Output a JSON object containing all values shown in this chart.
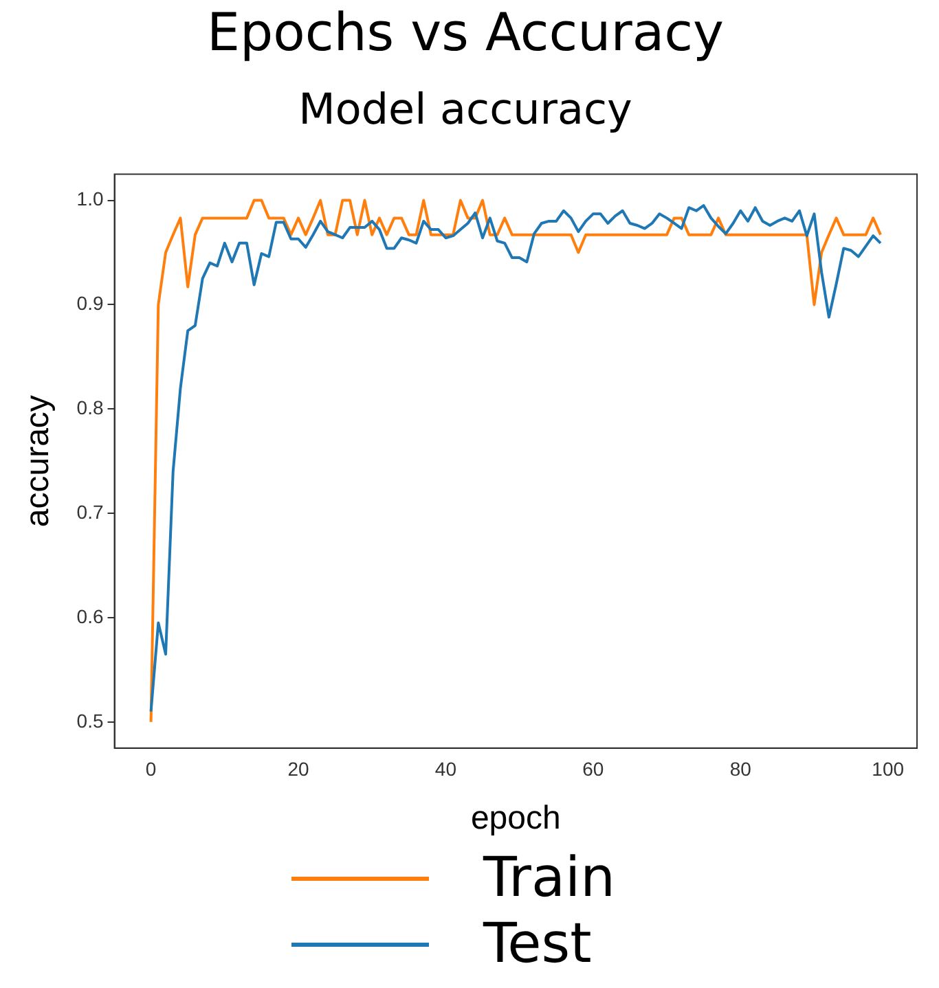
{
  "chart_data": {
    "type": "line",
    "title": "Epochs vs Accuracy",
    "subtitle": "Model accuracy",
    "xlabel": "epoch",
    "ylabel": "accuracy",
    "x": [
      0,
      1,
      2,
      3,
      4,
      5,
      6,
      7,
      8,
      9,
      10,
      11,
      12,
      13,
      14,
      15,
      16,
      17,
      18,
      19,
      20,
      21,
      22,
      23,
      24,
      25,
      26,
      27,
      28,
      29,
      30,
      31,
      32,
      33,
      34,
      35,
      36,
      37,
      38,
      39,
      40,
      41,
      42,
      43,
      44,
      45,
      46,
      47,
      48,
      49,
      50,
      51,
      52,
      53,
      54,
      55,
      56,
      57,
      58,
      59,
      60,
      61,
      62,
      63,
      64,
      65,
      66,
      67,
      68,
      69,
      70,
      71,
      72,
      73,
      74,
      75,
      76,
      77,
      78,
      79,
      80,
      81,
      82,
      83,
      84,
      85,
      86,
      87,
      88,
      89,
      90,
      91,
      92,
      93,
      94,
      95,
      96,
      97,
      98,
      99
    ],
    "series": [
      {
        "name": "Train",
        "color": "#ff7f0e",
        "values": [
          0.5,
          0.9,
          0.95,
          0.967,
          0.983,
          0.917,
          0.967,
          0.983,
          0.983,
          0.983,
          0.983,
          0.983,
          0.983,
          0.983,
          1.0,
          1.0,
          0.983,
          0.983,
          0.983,
          0.967,
          0.983,
          0.967,
          0.983,
          1.0,
          0.967,
          0.967,
          1.0,
          1.0,
          0.967,
          1.0,
          0.967,
          0.983,
          0.967,
          0.983,
          0.983,
          0.967,
          0.967,
          1.0,
          0.967,
          0.967,
          0.967,
          0.967,
          1.0,
          0.983,
          0.983,
          1.0,
          0.967,
          0.967,
          0.983,
          0.967,
          0.967,
          0.967,
          0.967,
          0.967,
          0.967,
          0.967,
          0.967,
          0.967,
          0.95,
          0.967,
          0.967,
          0.967,
          0.967,
          0.967,
          0.967,
          0.967,
          0.967,
          0.967,
          0.967,
          0.967,
          0.967,
          0.983,
          0.983,
          0.967,
          0.967,
          0.967,
          0.967,
          0.983,
          0.967,
          0.967,
          0.967,
          0.967,
          0.967,
          0.967,
          0.967,
          0.967,
          0.967,
          0.967,
          0.967,
          0.967,
          0.9,
          0.95,
          0.967,
          0.983,
          0.967,
          0.967,
          0.967,
          0.967,
          0.983,
          0.967
        ]
      },
      {
        "name": "Test",
        "color": "#1f77b4",
        "values": [
          0.51,
          0.595,
          0.565,
          0.74,
          0.82,
          0.875,
          0.88,
          0.925,
          0.94,
          0.937,
          0.959,
          0.941,
          0.959,
          0.959,
          0.919,
          0.949,
          0.946,
          0.979,
          0.979,
          0.963,
          0.963,
          0.955,
          0.967,
          0.98,
          0.97,
          0.967,
          0.964,
          0.974,
          0.974,
          0.974,
          0.98,
          0.972,
          0.954,
          0.954,
          0.964,
          0.962,
          0.959,
          0.98,
          0.972,
          0.972,
          0.964,
          0.966,
          0.972,
          0.978,
          0.988,
          0.964,
          0.983,
          0.961,
          0.959,
          0.945,
          0.945,
          0.941,
          0.968,
          0.978,
          0.98,
          0.98,
          0.99,
          0.983,
          0.97,
          0.98,
          0.987,
          0.987,
          0.978,
          0.985,
          0.99,
          0.978,
          0.976,
          0.973,
          0.978,
          0.987,
          0.983,
          0.978,
          0.973,
          0.993,
          0.99,
          0.995,
          0.983,
          0.975,
          0.968,
          0.978,
          0.99,
          0.98,
          0.993,
          0.98,
          0.976,
          0.98,
          0.983,
          0.98,
          0.99,
          0.966,
          0.987,
          0.931,
          0.888,
          0.92,
          0.954,
          0.952,
          0.946,
          0.956,
          0.966,
          0.959
        ]
      }
    ],
    "xlim": [
      -4.95,
      103.95
    ],
    "xticks": [
      0,
      20,
      40,
      60,
      80,
      100
    ],
    "ylim": [
      0.475,
      1.025
    ],
    "yticks": [
      0.5,
      0.6,
      0.7,
      0.8,
      0.9,
      {
        "value": 1,
        "label": "1.0"
      }
    ],
    "grid": false,
    "legend": "bottom",
    "marker": "none",
    "line_style": "solid"
  }
}
